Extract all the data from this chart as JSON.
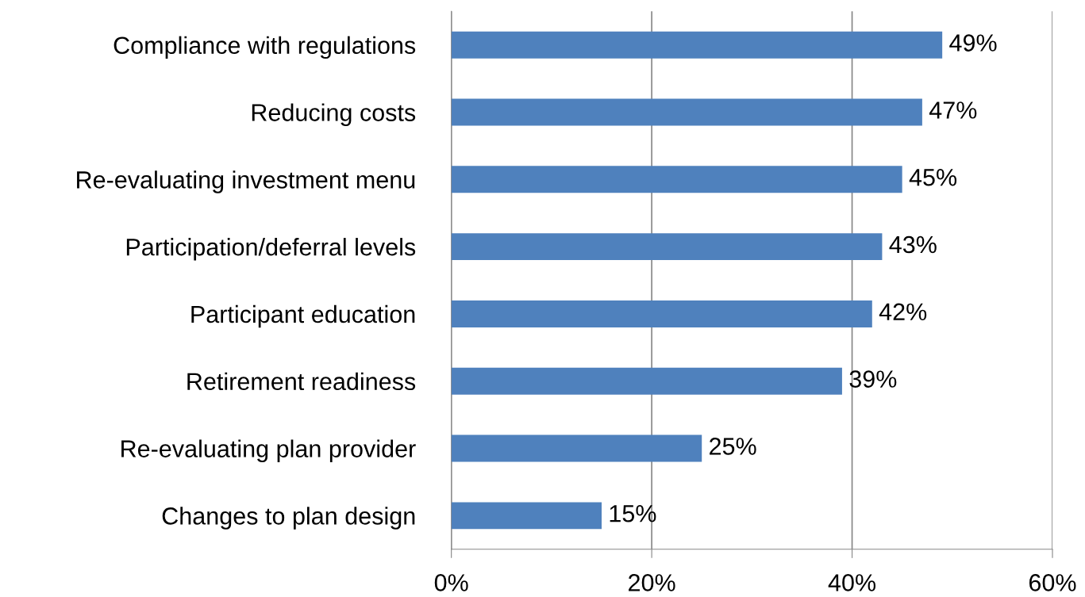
{
  "chart_data": {
    "type": "bar",
    "orientation": "horizontal",
    "categories": [
      "Compliance with regulations",
      "Reducing costs",
      "Re-evaluating investment menu",
      "Participation/deferral levels",
      "Participant education",
      "Retirement readiness",
      "Re-evaluating plan provider",
      "Changes to plan design"
    ],
    "values": [
      49,
      47,
      45,
      43,
      42,
      39,
      25,
      15
    ],
    "value_labels": [
      "49%",
      "47%",
      "45%",
      "43%",
      "42%",
      "39%",
      "25%",
      "15%"
    ],
    "color": "#4f81bd",
    "xlim": [
      0,
      60
    ],
    "xticks": [
      {
        "value": 0,
        "label": "0%"
      },
      {
        "value": 20,
        "label": "20%"
      },
      {
        "value": 40,
        "label": "40%"
      },
      {
        "value": 60,
        "label": "60%"
      }
    ],
    "grid": "x",
    "legend": false
  }
}
